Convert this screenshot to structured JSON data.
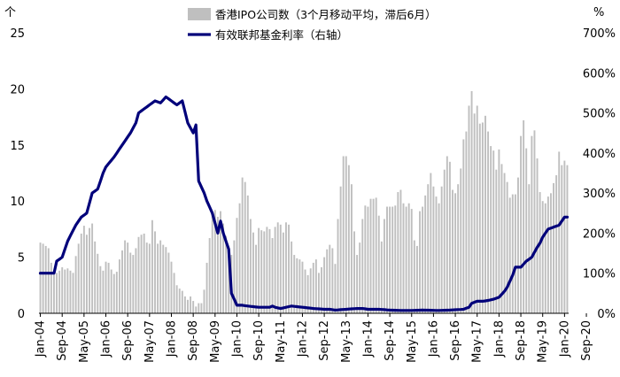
{
  "chart_data": {
    "type": "bar+line",
    "left_axis": {
      "unit": "个",
      "range": [
        0,
        25
      ],
      "ticks": [
        "0",
        "5",
        "10",
        "15",
        "20",
        "25"
      ]
    },
    "right_axis": {
      "unit": "%",
      "range": [
        0,
        700
      ],
      "ticks": [
        "0%",
        "100%",
        "200%",
        "300%",
        "400%",
        "500%",
        "600%",
        "700%"
      ]
    },
    "x_ticks": [
      "Jan-04",
      "Sep-04",
      "May-05",
      "Jan-06",
      "Sep-06",
      "May-07",
      "Jan-08",
      "Sep-08",
      "May-09",
      "Jan-10",
      "Sep-10",
      "May-11",
      "Jan-12",
      "Sep-12",
      "May-13",
      "Jan-14",
      "Sep-14",
      "May-15",
      "Jan-16",
      "Sep-16",
      "May-17",
      "Jan-18",
      "Sep-18",
      "May-19",
      "Jan-20",
      "Sep-20"
    ],
    "legend": [
      {
        "label": "香港IPO公司数（3个月移动平均，滞后6月）",
        "color": "#bfbfbf",
        "kind": "bar"
      },
      {
        "label": "有效联邦基金利率（右轴）",
        "color": "#00007a",
        "kind": "line"
      }
    ],
    "start": {
      "year": 2004,
      "month": 1
    },
    "series": [
      {
        "name": "香港IPO公司数（3个月移动平均，滞后6月）",
        "axis": "left",
        "values": [
          6.3,
          6.2,
          6.0,
          5.8,
          4.5,
          3.8,
          3.6,
          3.8,
          4.1,
          3.9,
          4.0,
          3.8,
          3.6,
          5.1,
          6.2,
          7.1,
          7.8,
          7.0,
          7.6,
          8.0,
          6.4,
          5.3,
          4.2,
          3.8,
          4.6,
          4.5,
          3.9,
          3.5,
          3.7,
          4.8,
          5.6,
          6.5,
          6.3,
          5.4,
          5.2,
          5.8,
          6.8,
          7.0,
          7.1,
          6.3,
          6.2,
          8.3,
          7.3,
          6.2,
          6.5,
          6.1,
          5.9,
          5.4,
          4.6,
          3.6,
          2.5,
          2.2,
          2.0,
          1.5,
          1.2,
          1.5,
          1.1,
          0.6,
          0.9,
          0.9,
          2.1,
          4.5,
          6.7,
          9.0,
          9.2,
          8.6,
          9.1,
          8.0,
          6.9,
          5.6,
          5.2,
          6.5,
          8.5,
          9.8,
          12.1,
          11.7,
          10.5,
          8.4,
          7.2,
          6.1,
          7.6,
          7.4,
          7.3,
          7.7,
          7.5,
          6.7,
          7.7,
          8.1,
          7.9,
          7.2,
          8.1,
          7.9,
          6.4,
          5.2,
          4.9,
          4.8,
          4.6,
          3.9,
          3.4,
          4.0,
          4.5,
          4.8,
          3.6,
          4.1,
          5.0,
          5.7,
          6.1,
          5.8,
          4.4,
          8.4,
          11.3,
          14.0,
          14.0,
          13.2,
          11.5,
          7.3,
          5.2,
          6.3,
          8.4,
          9.6,
          9.5,
          10.2,
          10.2,
          10.3,
          8.7,
          6.4,
          8.4,
          9.5,
          9.5,
          9.5,
          9.6,
          10.8,
          11.0,
          9.8,
          9.5,
          9.8,
          9.3,
          6.5,
          6.0,
          9.1,
          9.5,
          10.5,
          11.5,
          12.5,
          11.3,
          10.4,
          9.8,
          11.3,
          12.8,
          14.0,
          13.5,
          11.0,
          10.7,
          11.5,
          12.9,
          15.5,
          16.2,
          18.5,
          19.8,
          17.8,
          18.5,
          16.9,
          17.0,
          17.6,
          16.2,
          14.9,
          14.5,
          12.8,
          14.6,
          13.3,
          12.5,
          11.7,
          10.3,
          10.6,
          10.6,
          12.1,
          15.8,
          17.2,
          14.7,
          11.5,
          15.8,
          16.3,
          13.8,
          10.8,
          10.0,
          9.8,
          10.4,
          10.7,
          11.6,
          12.3,
          14.4,
          13.2,
          13.6,
          13.2
        ]
      },
      {
        "name": "有效联邦基金利率（右轴）",
        "axis": "right",
        "anchors": [
          [
            0,
            100
          ],
          [
            5,
            100
          ],
          [
            6,
            130
          ],
          [
            8,
            140
          ],
          [
            10,
            180
          ],
          [
            13,
            220
          ],
          [
            15,
            240
          ],
          [
            17,
            250
          ],
          [
            19,
            300
          ],
          [
            21,
            310
          ],
          [
            23,
            350
          ],
          [
            24,
            365
          ],
          [
            27,
            390
          ],
          [
            29,
            410
          ],
          [
            31,
            430
          ],
          [
            33,
            450
          ],
          [
            35,
            475
          ],
          [
            36,
            500
          ],
          [
            38,
            510
          ],
          [
            40,
            520
          ],
          [
            42,
            530
          ],
          [
            44,
            525
          ],
          [
            46,
            540
          ],
          [
            48,
            530
          ],
          [
            50,
            520
          ],
          [
            52,
            530
          ],
          [
            54,
            475
          ],
          [
            56,
            450
          ],
          [
            57,
            470
          ],
          [
            58,
            330
          ],
          [
            60,
            300
          ],
          [
            61,
            280
          ],
          [
            63,
            250
          ],
          [
            65,
            200
          ],
          [
            66,
            230
          ],
          [
            67,
            200
          ],
          [
            68,
            180
          ],
          [
            69,
            160
          ],
          [
            70,
            50
          ],
          [
            72,
            20
          ],
          [
            74,
            20
          ],
          [
            76,
            18
          ],
          [
            80,
            15
          ],
          [
            82,
            15
          ],
          [
            84,
            15
          ],
          [
            85,
            18
          ],
          [
            86,
            15
          ],
          [
            88,
            12
          ],
          [
            90,
            15
          ],
          [
            92,
            18
          ],
          [
            96,
            15
          ],
          [
            100,
            12
          ],
          [
            104,
            10
          ],
          [
            106,
            10
          ],
          [
            108,
            8
          ],
          [
            112,
            10
          ],
          [
            116,
            12
          ],
          [
            118,
            12
          ],
          [
            120,
            10
          ],
          [
            124,
            10
          ],
          [
            128,
            8
          ],
          [
            132,
            7
          ],
          [
            136,
            7
          ],
          [
            140,
            8
          ],
          [
            146,
            7
          ],
          [
            150,
            8
          ],
          [
            155,
            10
          ],
          [
            157,
            15
          ],
          [
            158,
            25
          ],
          [
            160,
            30
          ],
          [
            162,
            30
          ],
          [
            164,
            32
          ],
          [
            166,
            35
          ],
          [
            168,
            40
          ],
          [
            170,
            55
          ],
          [
            171,
            65
          ],
          [
            172,
            80
          ],
          [
            173,
            95
          ],
          [
            174,
            115
          ],
          [
            176,
            115
          ],
          [
            178,
            130
          ],
          [
            180,
            140
          ],
          [
            182,
            165
          ],
          [
            183,
            175
          ],
          [
            184,
            190
          ],
          [
            186,
            210
          ],
          [
            188,
            215
          ],
          [
            190,
            220
          ],
          [
            191,
            230
          ],
          [
            192,
            240
          ],
          [
            194,
            240
          ],
          [
            196,
            240
          ],
          [
            198,
            235
          ],
          [
            199,
            210
          ],
          [
            200,
            180
          ],
          [
            201,
            160
          ],
          [
            202,
            160
          ],
          [
            203,
            155
          ],
          [
            204,
            155
          ],
          [
            205,
            5
          ],
          [
            206,
            5
          ],
          [
            207,
            8
          ],
          [
            208,
            10
          ],
          [
            212,
            9
          ],
          [
            214,
            9
          ],
          [
            216,
            5
          ]
        ]
      }
    ]
  }
}
